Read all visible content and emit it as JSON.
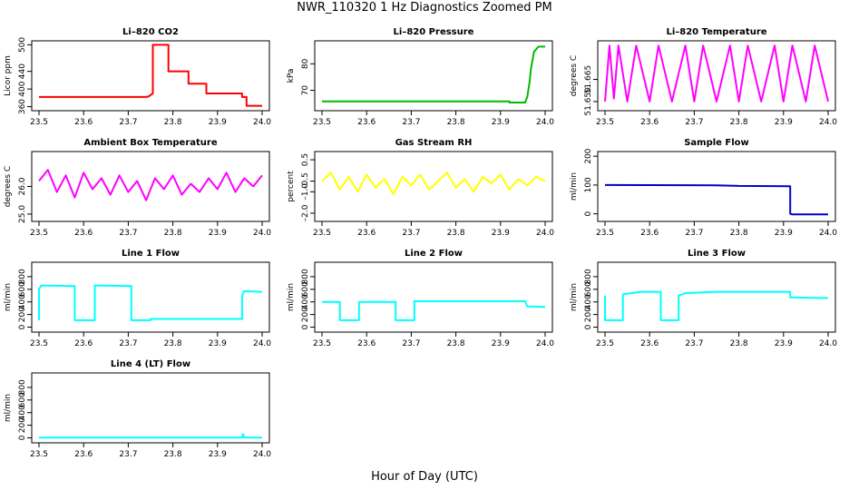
{
  "title": "NWR_110320  1 Hz Diagnostics Zoomed PM",
  "xlabel": "Hour of Day (UTC)",
  "chart_data": [
    {
      "type": "line",
      "title": "Li–820 CO2",
      "ylabel": "Licor ppm",
      "color": "#ff0000",
      "xlim": [
        23.5,
        24.0
      ],
      "xticks": [
        "23.5",
        "23.6",
        "23.7",
        "23.8",
        "23.9",
        "24.0"
      ],
      "ylim": [
        355,
        505
      ],
      "yticks": [
        {
          "v": 360,
          "t": "360"
        },
        {
          "v": 400,
          "t": "400"
        },
        {
          "v": 440,
          "t": "440"
        },
        {
          "v": 500,
          "t": "500"
        }
      ],
      "series": [
        {
          "x": [
            23.5,
            23.74,
            23.745,
            23.755,
            23.755,
            23.79,
            23.79,
            23.835,
            23.835,
            23.875,
            23.875,
            23.955,
            23.955,
            23.965,
            23.965,
            24.0
          ],
          "y": [
            382,
            382,
            383,
            390,
            500,
            500,
            440,
            440,
            412,
            412,
            390,
            390,
            382,
            382,
            362,
            362
          ]
        }
      ]
    },
    {
      "type": "line",
      "title": "Li–820 Pressure",
      "ylabel": "kPa",
      "color": "#00bb00",
      "xlim": [
        23.5,
        24.0
      ],
      "xticks": [
        "23.5",
        "23.6",
        "23.7",
        "23.8",
        "23.9",
        "24.0"
      ],
      "ylim": [
        63,
        88
      ],
      "yticks": [
        {
          "v": 70,
          "t": "70"
        },
        {
          "v": 80,
          "t": "80"
        }
      ],
      "series": [
        {
          "x": [
            23.5,
            23.92,
            23.92,
            23.955,
            23.96,
            23.965,
            23.968,
            23.975,
            23.985,
            24.0
          ],
          "y": [
            65.8,
            65.8,
            65.4,
            65.4,
            67.5,
            73,
            78,
            84.5,
            86.5,
            86.5
          ]
        }
      ]
    },
    {
      "type": "line",
      "title": "Li–820 Temperature",
      "ylabel": "degrees C",
      "color": "#ff00ff",
      "xlim": [
        23.5,
        24.0
      ],
      "xticks": [
        "23.5",
        "23.6",
        "23.7",
        "23.8",
        "23.9",
        "24.0"
      ],
      "ylim": [
        51.645,
        51.69
      ],
      "yticks": [
        {
          "v": 51.65,
          "t": "51.650"
        },
        {
          "v": 51.665,
          "t": "51.665"
        }
      ],
      "series": [
        {
          "x": [
            23.5,
            23.51,
            23.52,
            23.53,
            23.55,
            23.57,
            23.6,
            23.62,
            23.65,
            23.68,
            23.7,
            23.72,
            23.75,
            23.78,
            23.8,
            23.82,
            23.85,
            23.88,
            23.9,
            23.92,
            23.95,
            23.97,
            24.0
          ],
          "y": [
            51.65,
            51.688,
            51.652,
            51.688,
            51.65,
            51.688,
            51.65,
            51.688,
            51.65,
            51.688,
            51.65,
            51.688,
            51.65,
            51.688,
            51.65,
            51.688,
            51.65,
            51.688,
            51.65,
            51.688,
            51.65,
            51.688,
            51.65
          ]
        }
      ]
    },
    {
      "type": "line",
      "title": "Ambient Box Temperature",
      "ylabel": "degrees C",
      "color": "#ff00ff",
      "xlim": [
        23.5,
        24.0
      ],
      "xticks": [
        "23.5",
        "23.6",
        "23.7",
        "23.8",
        "23.9",
        "24.0"
      ],
      "ylim": [
        24.8,
        27.2
      ],
      "yticks": [
        {
          "v": 25.0,
          "t": "25.0"
        },
        {
          "v": 26.0,
          "t": "26.0"
        }
      ],
      "series": [
        {
          "x": [
            23.5,
            23.52,
            23.54,
            23.56,
            23.58,
            23.6,
            23.62,
            23.64,
            23.66,
            23.68,
            23.7,
            23.72,
            23.74,
            23.76,
            23.78,
            23.8,
            23.82,
            23.84,
            23.86,
            23.88,
            23.9,
            23.92,
            23.94,
            23.96,
            23.98,
            24.0
          ],
          "y": [
            26.2,
            26.6,
            25.8,
            26.4,
            25.6,
            26.5,
            25.9,
            26.3,
            25.7,
            26.4,
            25.8,
            26.2,
            25.5,
            26.3,
            25.9,
            26.4,
            25.7,
            26.1,
            25.8,
            26.3,
            25.9,
            26.5,
            25.8,
            26.3,
            26.0,
            26.4
          ]
        }
      ]
    },
    {
      "type": "line",
      "title": "Gas Stream RH",
      "ylabel": "percent",
      "color": "#ffff00",
      "xlim": [
        23.5,
        24.0
      ],
      "xticks": [
        "23.5",
        "23.6",
        "23.7",
        "23.8",
        "23.9",
        "24.0"
      ],
      "ylim": [
        -2.3,
        0.8
      ],
      "yticks": [
        {
          "v": -2.0,
          "t": "–2.0"
        },
        {
          "v": -1.0,
          "t": "–1.0"
        },
        {
          "v": -0.5,
          "t": "–0.5"
        },
        {
          "v": 0.5,
          "t": "0.5"
        }
      ],
      "series": [
        {
          "x": [
            23.5,
            23.52,
            23.54,
            23.56,
            23.58,
            23.6,
            23.62,
            23.64,
            23.66,
            23.68,
            23.7,
            23.72,
            23.74,
            23.76,
            23.78,
            23.8,
            23.82,
            23.84,
            23.86,
            23.88,
            23.9,
            23.92,
            23.94,
            23.96,
            23.98,
            24.0
          ],
          "y": [
            -0.5,
            -0.1,
            -0.9,
            -0.3,
            -1.0,
            -0.2,
            -0.8,
            -0.4,
            -1.1,
            -0.3,
            -0.7,
            -0.2,
            -0.9,
            -0.5,
            -0.1,
            -0.8,
            -0.4,
            -1.0,
            -0.3,
            -0.6,
            -0.2,
            -0.9,
            -0.4,
            -0.7,
            -0.3,
            -0.5
          ]
        }
      ]
    },
    {
      "type": "line",
      "title": "Sample Flow",
      "ylabel": "ml/min",
      "color": "#0000cc",
      "xlim": [
        23.5,
        24.0
      ],
      "xticks": [
        "23.5",
        "23.6",
        "23.7",
        "23.8",
        "23.9",
        "24.0"
      ],
      "ylim": [
        -20,
        210
      ],
      "yticks": [
        {
          "v": 0,
          "t": "0"
        },
        {
          "v": 100,
          "t": "100"
        },
        {
          "v": 200,
          "t": "200"
        }
      ],
      "series": [
        {
          "x": [
            23.5,
            23.75,
            23.8,
            23.915,
            23.915,
            23.92,
            24.0
          ],
          "y": [
            100,
            99,
            97,
            96,
            0,
            -2,
            -2
          ]
        }
      ]
    },
    {
      "type": "line",
      "title": "Line 1 Flow",
      "ylabel": "ml/min",
      "color": "#00ffff",
      "xlim": [
        23.5,
        24.0
      ],
      "xticks": [
        "23.5",
        "23.6",
        "23.7",
        "23.8",
        "23.9",
        "24.0"
      ],
      "ylim": [
        -50,
        1000
      ],
      "yticks": [
        {
          "v": 0,
          "t": "0"
        },
        {
          "v": 200,
          "t": "200"
        },
        {
          "v": 400,
          "t": "400"
        },
        {
          "v": 600,
          "t": "600"
        },
        {
          "v": 800,
          "t": "800"
        }
      ],
      "series": [
        {
          "x": [
            23.5,
            23.5,
            23.505,
            23.58,
            23.58,
            23.625,
            23.625,
            23.707,
            23.707,
            23.75,
            23.75,
            23.955,
            23.955,
            23.96,
            24.0
          ],
          "y": [
            110,
            600,
            660,
            650,
            110,
            110,
            660,
            650,
            110,
            110,
            130,
            130,
            500,
            570,
            560
          ]
        }
      ]
    },
    {
      "type": "line",
      "title": "Line 2 Flow",
      "ylabel": "ml/min",
      "color": "#00ffff",
      "xlim": [
        23.5,
        24.0
      ],
      "xticks": [
        "23.5",
        "23.6",
        "23.7",
        "23.8",
        "23.9",
        "24.0"
      ],
      "ylim": [
        -50,
        1000
      ],
      "yticks": [
        {
          "v": 0,
          "t": "0"
        },
        {
          "v": 200,
          "t": "200"
        },
        {
          "v": 400,
          "t": "400"
        },
        {
          "v": 600,
          "t": "600"
        },
        {
          "v": 800,
          "t": "800"
        }
      ],
      "series": [
        {
          "x": [
            23.5,
            23.54,
            23.54,
            23.583,
            23.583,
            23.665,
            23.665,
            23.707,
            23.707,
            23.955,
            23.96,
            24.0
          ],
          "y": [
            400,
            400,
            110,
            110,
            400,
            400,
            110,
            110,
            410,
            410,
            330,
            320
          ]
        }
      ]
    },
    {
      "type": "line",
      "title": "Line 3 Flow",
      "ylabel": "ml/min",
      "color": "#00ffff",
      "xlim": [
        23.5,
        24.0
      ],
      "xticks": [
        "23.5",
        "23.6",
        "23.7",
        "23.8",
        "23.9",
        "24.0"
      ],
      "ylim": [
        -50,
        1000
      ],
      "yticks": [
        {
          "v": 0,
          "t": "0"
        },
        {
          "v": 200,
          "t": "200"
        },
        {
          "v": 400,
          "t": "400"
        },
        {
          "v": 600,
          "t": "600"
        },
        {
          "v": 800,
          "t": "800"
        }
      ],
      "series": [
        {
          "x": [
            23.5,
            23.5,
            23.505,
            23.54,
            23.54,
            23.58,
            23.625,
            23.625,
            23.665,
            23.665,
            23.68,
            23.75,
            23.915,
            23.915,
            23.92,
            24.0
          ],
          "y": [
            500,
            110,
            110,
            110,
            520,
            560,
            560,
            110,
            110,
            500,
            540,
            560,
            560,
            470,
            470,
            460
          ]
        }
      ]
    },
    {
      "type": "line",
      "title": "Line 4 (LT) Flow",
      "ylabel": "ml/min",
      "color": "#00ffff",
      "xlim": [
        23.5,
        24.0
      ],
      "xticks": [
        "23.5",
        "23.6",
        "23.7",
        "23.8",
        "23.9",
        "24.0"
      ],
      "ylim": [
        -50,
        1000
      ],
      "yticks": [
        {
          "v": 0,
          "t": "0"
        },
        {
          "v": 200,
          "t": "200"
        },
        {
          "v": 400,
          "t": "400"
        },
        {
          "v": 600,
          "t": "600"
        },
        {
          "v": 800,
          "t": "800"
        }
      ],
      "series": [
        {
          "x": [
            23.5,
            23.955,
            23.957,
            23.96,
            24.0
          ],
          "y": [
            5,
            5,
            60,
            5,
            5
          ]
        }
      ]
    }
  ]
}
